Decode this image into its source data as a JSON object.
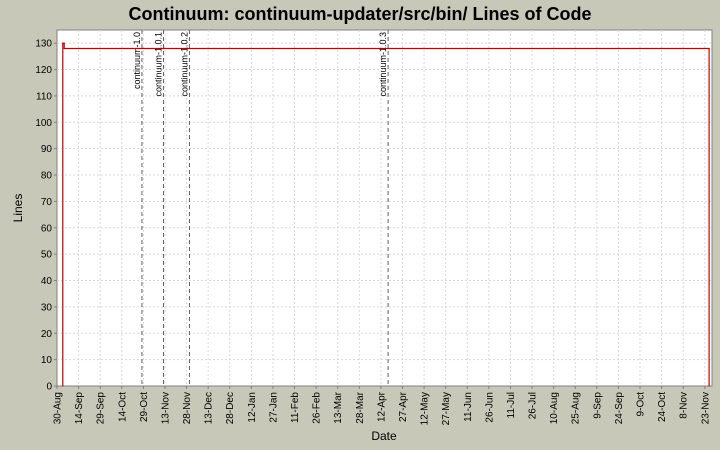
{
  "chart_data": {
    "type": "line",
    "title": "Continuum: continuum-updater/src/bin/ Lines of Code",
    "xlabel": "Date",
    "ylabel": "Lines",
    "ylim": [
      0,
      135
    ],
    "yticks": [
      0,
      10,
      20,
      30,
      40,
      50,
      60,
      70,
      80,
      90,
      100,
      110,
      120,
      130
    ],
    "xlim": [
      "2005-08-30",
      "2006-11-28"
    ],
    "xticks": [
      {
        "date": "2005-08-30",
        "label": "30-Aug"
      },
      {
        "date": "2005-09-14",
        "label": "14-Sep"
      },
      {
        "date": "2005-09-29",
        "label": "29-Sep"
      },
      {
        "date": "2005-10-14",
        "label": "14-Oct"
      },
      {
        "date": "2005-10-29",
        "label": "29-Oct"
      },
      {
        "date": "2005-11-13",
        "label": "13-Nov"
      },
      {
        "date": "2005-11-28",
        "label": "28-Nov"
      },
      {
        "date": "2005-12-13",
        "label": "13-Dec"
      },
      {
        "date": "2005-12-28",
        "label": "28-Dec"
      },
      {
        "date": "2006-01-12",
        "label": "12-Jan"
      },
      {
        "date": "2006-01-27",
        "label": "27-Jan"
      },
      {
        "date": "2006-02-11",
        "label": "11-Feb"
      },
      {
        "date": "2006-02-26",
        "label": "26-Feb"
      },
      {
        "date": "2006-03-13",
        "label": "13-Mar"
      },
      {
        "date": "2006-03-28",
        "label": "28-Mar"
      },
      {
        "date": "2006-04-12",
        "label": "12-Apr"
      },
      {
        "date": "2006-04-27",
        "label": "27-Apr"
      },
      {
        "date": "2006-05-12",
        "label": "12-May"
      },
      {
        "date": "2006-05-27",
        "label": "27-May"
      },
      {
        "date": "2006-06-11",
        "label": "11-Jun"
      },
      {
        "date": "2006-06-26",
        "label": "26-Jun"
      },
      {
        "date": "2006-07-11",
        "label": "11-Jul"
      },
      {
        "date": "2006-07-26",
        "label": "26-Jul"
      },
      {
        "date": "2006-08-10",
        "label": "10-Aug"
      },
      {
        "date": "2006-08-25",
        "label": "25-Aug"
      },
      {
        "date": "2006-09-09",
        "label": "9-Sep"
      },
      {
        "date": "2006-09-24",
        "label": "24-Sep"
      },
      {
        "date": "2006-10-09",
        "label": "9-Oct"
      },
      {
        "date": "2006-10-24",
        "label": "24-Oct"
      },
      {
        "date": "2006-11-08",
        "label": "8-Nov"
      },
      {
        "date": "2006-11-23",
        "label": "23-Nov"
      }
    ],
    "series": [
      {
        "color": "#c00000",
        "points": [
          {
            "x": "2005-09-03",
            "y": 0
          },
          {
            "x": "2005-09-03",
            "y": 130
          },
          {
            "x": "2005-09-04",
            "y": 130
          },
          {
            "x": "2005-09-04",
            "y": 128
          },
          {
            "x": "2006-11-26",
            "y": 128
          },
          {
            "x": "2006-11-26",
            "y": 0
          }
        ]
      }
    ],
    "markers": [
      {
        "date": "2005-10-28",
        "label": "continuum-1.0"
      },
      {
        "date": "2005-11-12",
        "label": "continuum-1.0.1"
      },
      {
        "date": "2005-11-30",
        "label": "continuum-1.0.2"
      },
      {
        "date": "2006-04-17",
        "label": "continuum-1.0.3"
      }
    ],
    "grid": true,
    "legend": "none",
    "colors": {
      "background": "#c8c8b8",
      "plot_background": "#ffffff",
      "grid": "#d8d8d8",
      "marker_line": "#606060",
      "axis": "#808080"
    }
  }
}
